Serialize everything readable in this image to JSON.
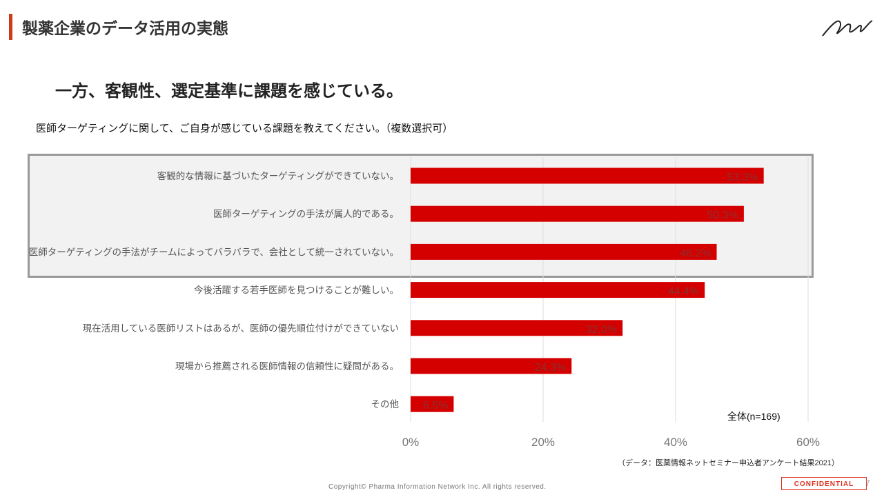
{
  "header": {
    "title": "製薬企業のデータ活用の実態",
    "accent_color": "#d03a1c",
    "logo": "signature-logo"
  },
  "headline": "一方、客観性、選定基準に課題を感じている。",
  "question": "医師ターゲティングに関して、ご自身が感じている課題を教えてください。（複数選択可）",
  "chart_data": {
    "type": "bar",
    "orientation": "horizontal",
    "categories": [
      "客観的な情報に基づいたターゲティングができていない。",
      "医師ターゲティングの手法が属人的である。",
      "医師ターゲティングの手法がチームによってバラバラで、会社として統一されていない。",
      "今後活躍する若手医師を見つけることが難しい。",
      "現在活用している医師リストはあるが、医師の優先順位付けができていない",
      "現場から推薦される医師情報の信頼性に疑問がある。",
      "その他"
    ],
    "values": [
      53.3,
      50.3,
      46.2,
      44.4,
      32.0,
      24.3,
      6.5
    ],
    "data_labels": [
      "53.3%",
      "50.3%",
      "46.2%",
      "44.4%",
      "32.0%",
      "24.3%",
      "6.5%"
    ],
    "xlim": [
      0,
      60
    ],
    "ticks": [
      "0%",
      "20%",
      "40%",
      "60%"
    ],
    "grid": true,
    "bar_color": "#d40000",
    "highlighted_categories": 3,
    "annotation": "全体(n=169)"
  },
  "footer": {
    "source": "（データ：医薬情報ネットセミナー申込者アンケート結果2021）",
    "copyright": "Copyright© Pharma Information Network Inc. All rights reserved.",
    "confidential": "CONFIDENTIAL",
    "page": "7"
  }
}
